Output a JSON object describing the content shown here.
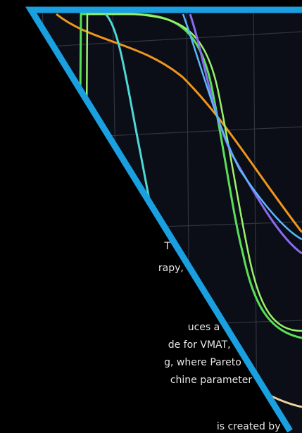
{
  "body_text": {
    "lines": [
      "T",
      "rapy,",
      "uces a",
      "de for VMAT,",
      "g, where Pareto",
      "chine parameter",
      "is created by"
    ]
  }
}
